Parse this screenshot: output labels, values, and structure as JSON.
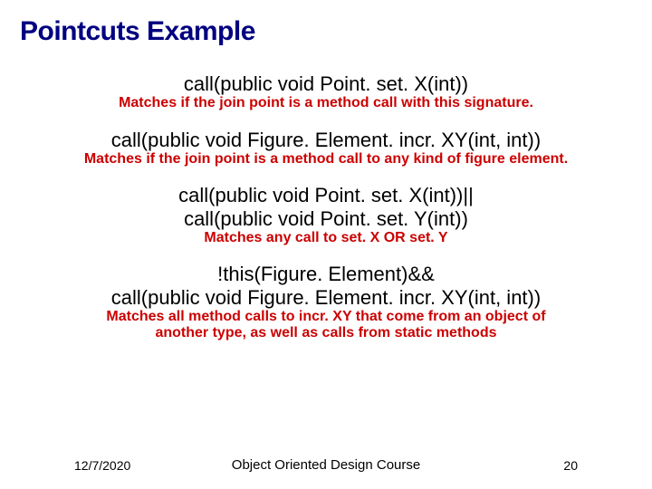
{
  "title": "Pointcuts Example",
  "examples": [
    {
      "code": "call(public void Point. set. X(int))",
      "desc": "Matches if the join point is a method call with this signature."
    },
    {
      "code": "call(public void Figure. Element. incr. XY(int, int))",
      "desc": "Matches if the join point is a method call to any kind of figure element."
    },
    {
      "code_lines": [
        "call(public void Point. set. X(int))||",
        "call(public void Point. set. Y(int))"
      ],
      "desc": "Matches any call to set. X OR set. Y"
    },
    {
      "code_lines": [
        "!this(Figure. Element)&&",
        "call(public void Figure. Element. incr. XY(int, int))"
      ],
      "desc_lines": [
        "Matches all method calls to incr. XY that  come from an object of",
        "another type, as well as calls from static methods"
      ]
    }
  ],
  "footer": {
    "date": "12/7/2020",
    "course": "Object Oriented Design Course",
    "page": "20"
  },
  "colors": {
    "title": "#000080",
    "desc": "#cc0000",
    "text": "#000000",
    "background": "#ffffff"
  }
}
